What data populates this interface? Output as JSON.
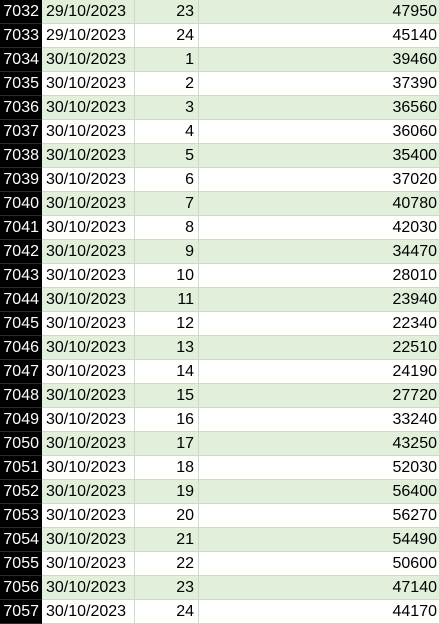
{
  "sheet": {
    "rows": [
      {
        "row": "7032",
        "date": "29/10/2023",
        "hour": "23",
        "value": "47950"
      },
      {
        "row": "7033",
        "date": "29/10/2023",
        "hour": "24",
        "value": "45140"
      },
      {
        "row": "7034",
        "date": "30/10/2023",
        "hour": "1",
        "value": "39460"
      },
      {
        "row": "7035",
        "date": "30/10/2023",
        "hour": "2",
        "value": "37390"
      },
      {
        "row": "7036",
        "date": "30/10/2023",
        "hour": "3",
        "value": "36560"
      },
      {
        "row": "7037",
        "date": "30/10/2023",
        "hour": "4",
        "value": "36060"
      },
      {
        "row": "7038",
        "date": "30/10/2023",
        "hour": "5",
        "value": "35400"
      },
      {
        "row": "7039",
        "date": "30/10/2023",
        "hour": "6",
        "value": "37020"
      },
      {
        "row": "7040",
        "date": "30/10/2023",
        "hour": "7",
        "value": "40780"
      },
      {
        "row": "7041",
        "date": "30/10/2023",
        "hour": "8",
        "value": "42030"
      },
      {
        "row": "7042",
        "date": "30/10/2023",
        "hour": "9",
        "value": "34470"
      },
      {
        "row": "7043",
        "date": "30/10/2023",
        "hour": "10",
        "value": "28010"
      },
      {
        "row": "7044",
        "date": "30/10/2023",
        "hour": "11",
        "value": "23940"
      },
      {
        "row": "7045",
        "date": "30/10/2023",
        "hour": "12",
        "value": "22340"
      },
      {
        "row": "7046",
        "date": "30/10/2023",
        "hour": "13",
        "value": "22510"
      },
      {
        "row": "7047",
        "date": "30/10/2023",
        "hour": "14",
        "value": "24190"
      },
      {
        "row": "7048",
        "date": "30/10/2023",
        "hour": "15",
        "value": "27720"
      },
      {
        "row": "7049",
        "date": "30/10/2023",
        "hour": "16",
        "value": "33240"
      },
      {
        "row": "7050",
        "date": "30/10/2023",
        "hour": "17",
        "value": "43250"
      },
      {
        "row": "7051",
        "date": "30/10/2023",
        "hour": "18",
        "value": "52030"
      },
      {
        "row": "7052",
        "date": "30/10/2023",
        "hour": "19",
        "value": "56400"
      },
      {
        "row": "7053",
        "date": "30/10/2023",
        "hour": "20",
        "value": "56270"
      },
      {
        "row": "7054",
        "date": "30/10/2023",
        "hour": "21",
        "value": "54490"
      },
      {
        "row": "7055",
        "date": "30/10/2023",
        "hour": "22",
        "value": "50600"
      },
      {
        "row": "7056",
        "date": "30/10/2023",
        "hour": "23",
        "value": "47140"
      },
      {
        "row": "7057",
        "date": "30/10/2023",
        "hour": "24",
        "value": "44170"
      }
    ],
    "colors": {
      "band": "#e2efda",
      "plain": "#ffffff",
      "grid": "#c9dec0",
      "row_header_bg": "#000000",
      "row_header_text": "#ffffff"
    }
  }
}
